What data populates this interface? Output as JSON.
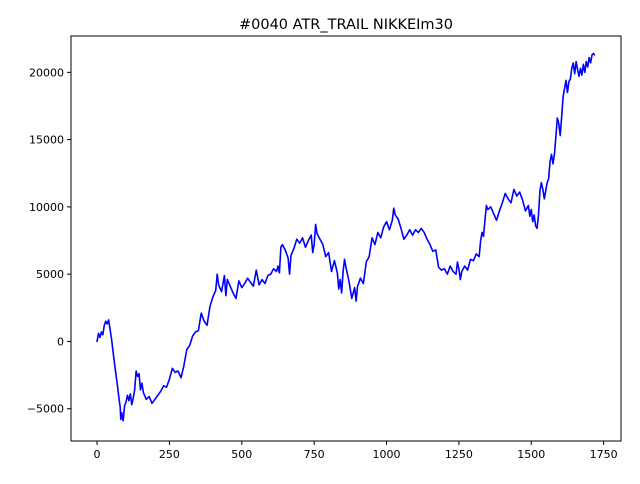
{
  "chart_data": {
    "type": "line",
    "title": "#0040 ATR_TRAIL NIKKEIm30",
    "xlabel": "",
    "ylabel": "",
    "xlim": [
      -90,
      1810
    ],
    "ylim": [
      -7400,
      22700
    ],
    "x_ticks": [
      0,
      250,
      500,
      750,
      1000,
      1250,
      1500,
      1750
    ],
    "y_ticks": [
      -5000,
      0,
      5000,
      10000,
      15000,
      20000
    ],
    "grid": false,
    "legend": "none",
    "series": [
      {
        "color": "#0000ff",
        "points": [
          [
            0,
            0
          ],
          [
            5,
            600
          ],
          [
            10,
            300
          ],
          [
            15,
            700
          ],
          [
            20,
            500
          ],
          [
            25,
            1200
          ],
          [
            30,
            1500
          ],
          [
            35,
            1300
          ],
          [
            40,
            1600
          ],
          [
            45,
            900
          ],
          [
            50,
            200
          ],
          [
            55,
            -700
          ],
          [
            60,
            -1600
          ],
          [
            65,
            -2400
          ],
          [
            70,
            -3200
          ],
          [
            75,
            -4100
          ],
          [
            80,
            -4900
          ],
          [
            82,
            -5800
          ],
          [
            85,
            -5300
          ],
          [
            90,
            -5900
          ],
          [
            95,
            -4800
          ],
          [
            100,
            -4500
          ],
          [
            105,
            -4000
          ],
          [
            110,
            -4400
          ],
          [
            115,
            -3900
          ],
          [
            120,
            -4700
          ],
          [
            125,
            -4200
          ],
          [
            130,
            -3600
          ],
          [
            135,
            -2200
          ],
          [
            140,
            -2600
          ],
          [
            145,
            -2400
          ],
          [
            150,
            -3600
          ],
          [
            155,
            -3100
          ],
          [
            160,
            -3800
          ],
          [
            170,
            -4300
          ],
          [
            180,
            -4100
          ],
          [
            190,
            -4600
          ],
          [
            200,
            -4300
          ],
          [
            210,
            -4000
          ],
          [
            220,
            -3700
          ],
          [
            230,
            -3300
          ],
          [
            240,
            -3400
          ],
          [
            250,
            -2800
          ],
          [
            260,
            -2000
          ],
          [
            270,
            -2300
          ],
          [
            280,
            -2200
          ],
          [
            290,
            -2700
          ],
          [
            300,
            -1800
          ],
          [
            310,
            -600
          ],
          [
            320,
            -300
          ],
          [
            330,
            400
          ],
          [
            340,
            700
          ],
          [
            350,
            800
          ],
          [
            360,
            2100
          ],
          [
            370,
            1500
          ],
          [
            380,
            1200
          ],
          [
            390,
            2600
          ],
          [
            400,
            3300
          ],
          [
            410,
            3800
          ],
          [
            415,
            5000
          ],
          [
            420,
            4200
          ],
          [
            430,
            3700
          ],
          [
            440,
            4900
          ],
          [
            445,
            3400
          ],
          [
            450,
            4600
          ],
          [
            460,
            4100
          ],
          [
            470,
            3600
          ],
          [
            480,
            3200
          ],
          [
            490,
            4500
          ],
          [
            500,
            4000
          ],
          [
            510,
            4300
          ],
          [
            520,
            4700
          ],
          [
            530,
            4400
          ],
          [
            540,
            4100
          ],
          [
            550,
            5300
          ],
          [
            560,
            4200
          ],
          [
            570,
            4600
          ],
          [
            580,
            4300
          ],
          [
            590,
            4900
          ],
          [
            600,
            5000
          ],
          [
            610,
            5400
          ],
          [
            620,
            5200
          ],
          [
            625,
            5600
          ],
          [
            630,
            5100
          ],
          [
            635,
            7000
          ],
          [
            640,
            7200
          ],
          [
            650,
            6800
          ],
          [
            660,
            6200
          ],
          [
            665,
            5000
          ],
          [
            670,
            6400
          ],
          [
            680,
            6900
          ],
          [
            690,
            7600
          ],
          [
            700,
            7300
          ],
          [
            710,
            7700
          ],
          [
            720,
            7000
          ],
          [
            730,
            7500
          ],
          [
            740,
            7900
          ],
          [
            745,
            6600
          ],
          [
            750,
            7200
          ],
          [
            755,
            8700
          ],
          [
            760,
            8000
          ],
          [
            770,
            7600
          ],
          [
            780,
            7200
          ],
          [
            790,
            6300
          ],
          [
            800,
            6600
          ],
          [
            810,
            5200
          ],
          [
            820,
            6000
          ],
          [
            830,
            5100
          ],
          [
            835,
            3900
          ],
          [
            840,
            4600
          ],
          [
            845,
            3600
          ],
          [
            850,
            5200
          ],
          [
            855,
            6100
          ],
          [
            860,
            5500
          ],
          [
            870,
            4500
          ],
          [
            880,
            3200
          ],
          [
            890,
            4000
          ],
          [
            895,
            3000
          ],
          [
            900,
            4100
          ],
          [
            910,
            4700
          ],
          [
            920,
            4300
          ],
          [
            930,
            5900
          ],
          [
            940,
            6300
          ],
          [
            950,
            7700
          ],
          [
            960,
            7200
          ],
          [
            970,
            8100
          ],
          [
            980,
            7700
          ],
          [
            990,
            8500
          ],
          [
            1000,
            8900
          ],
          [
            1010,
            8300
          ],
          [
            1020,
            9000
          ],
          [
            1025,
            9900
          ],
          [
            1030,
            9400
          ],
          [
            1040,
            9100
          ],
          [
            1050,
            8400
          ],
          [
            1060,
            7600
          ],
          [
            1070,
            7900
          ],
          [
            1080,
            8300
          ],
          [
            1090,
            7900
          ],
          [
            1100,
            8300
          ],
          [
            1110,
            8100
          ],
          [
            1120,
            8400
          ],
          [
            1130,
            8100
          ],
          [
            1140,
            7600
          ],
          [
            1150,
            7200
          ],
          [
            1160,
            6700
          ],
          [
            1170,
            6800
          ],
          [
            1180,
            5500
          ],
          [
            1190,
            5300
          ],
          [
            1200,
            5400
          ],
          [
            1210,
            5000
          ],
          [
            1220,
            5600
          ],
          [
            1230,
            5200
          ],
          [
            1240,
            5000
          ],
          [
            1245,
            5900
          ],
          [
            1250,
            5400
          ],
          [
            1255,
            4600
          ],
          [
            1260,
            5200
          ],
          [
            1270,
            5600
          ],
          [
            1280,
            5300
          ],
          [
            1290,
            6100
          ],
          [
            1300,
            6000
          ],
          [
            1310,
            6500
          ],
          [
            1320,
            6300
          ],
          [
            1325,
            7500
          ],
          [
            1330,
            8100
          ],
          [
            1335,
            7800
          ],
          [
            1340,
            9000
          ],
          [
            1345,
            10100
          ],
          [
            1350,
            9800
          ],
          [
            1360,
            10000
          ],
          [
            1370,
            9500
          ],
          [
            1380,
            9000
          ],
          [
            1390,
            9700
          ],
          [
            1400,
            10300
          ],
          [
            1410,
            11000
          ],
          [
            1420,
            10600
          ],
          [
            1430,
            10300
          ],
          [
            1440,
            11300
          ],
          [
            1450,
            10800
          ],
          [
            1460,
            11100
          ],
          [
            1470,
            10500
          ],
          [
            1480,
            9700
          ],
          [
            1490,
            10100
          ],
          [
            1495,
            9300
          ],
          [
            1500,
            9800
          ],
          [
            1505,
            8900
          ],
          [
            1510,
            9400
          ],
          [
            1515,
            8600
          ],
          [
            1520,
            8400
          ],
          [
            1525,
            9400
          ],
          [
            1530,
            11200
          ],
          [
            1535,
            11800
          ],
          [
            1540,
            11300
          ],
          [
            1545,
            10600
          ],
          [
            1550,
            11200
          ],
          [
            1555,
            11800
          ],
          [
            1560,
            12100
          ],
          [
            1565,
            13400
          ],
          [
            1570,
            13900
          ],
          [
            1575,
            13200
          ],
          [
            1580,
            13900
          ],
          [
            1585,
            15200
          ],
          [
            1590,
            16600
          ],
          [
            1595,
            16200
          ],
          [
            1600,
            15300
          ],
          [
            1605,
            16700
          ],
          [
            1610,
            18200
          ],
          [
            1615,
            18800
          ],
          [
            1620,
            19400
          ],
          [
            1625,
            18500
          ],
          [
            1630,
            19300
          ],
          [
            1635,
            19500
          ],
          [
            1640,
            20300
          ],
          [
            1645,
            20700
          ],
          [
            1650,
            19900
          ],
          [
            1655,
            20800
          ],
          [
            1660,
            20200
          ],
          [
            1665,
            19700
          ],
          [
            1670,
            20300
          ],
          [
            1675,
            19800
          ],
          [
            1680,
            20600
          ],
          [
            1685,
            20000
          ],
          [
            1690,
            20800
          ],
          [
            1695,
            20400
          ],
          [
            1700,
            21100
          ],
          [
            1705,
            20700
          ],
          [
            1710,
            21300
          ],
          [
            1715,
            21400
          ],
          [
            1718,
            21300
          ]
        ]
      }
    ]
  }
}
